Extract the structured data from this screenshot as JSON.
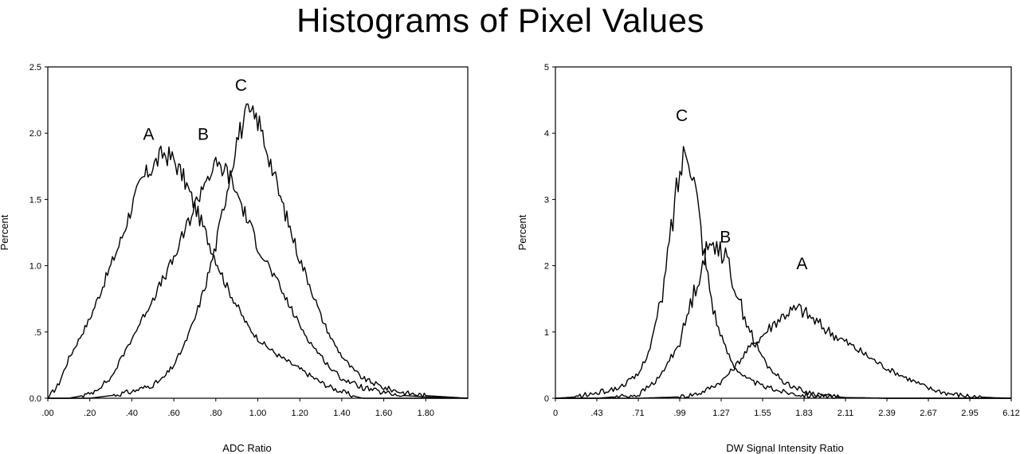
{
  "title": "Histograms of Pixel Values",
  "chart_data": [
    {
      "type": "line",
      "xlabel": "ADC Ratio",
      "ylabel": "Percent",
      "ylim": [
        0,
        2.5
      ],
      "xlim": [
        0,
        2.0
      ],
      "y_ticks": [
        {
          "value": 0,
          "label": "0.0"
        },
        {
          "value": 0.5,
          "label": ".5"
        },
        {
          "value": 1.0,
          "label": "1.0"
        },
        {
          "value": 1.5,
          "label": "1.5"
        },
        {
          "value": 2.0,
          "label": "2.0"
        },
        {
          "value": 2.5,
          "label": "2.5"
        }
      ],
      "x_ticks": [
        {
          "value": 0,
          "label": ".00"
        },
        {
          "value": 0.2,
          "label": ".20"
        },
        {
          "value": 0.4,
          "label": ".40"
        },
        {
          "value": 0.6,
          "label": ".60"
        },
        {
          "value": 0.8,
          "label": ".80"
        },
        {
          "value": 1.0,
          "label": "1.00"
        },
        {
          "value": 1.2,
          "label": "1.20"
        },
        {
          "value": 1.4,
          "label": "1.40"
        },
        {
          "value": 1.6,
          "label": "1.60"
        },
        {
          "value": 1.8,
          "label": "1.80"
        }
      ],
      "series": [
        {
          "name": "A",
          "x": [
            0.0,
            0.05,
            0.1,
            0.15,
            0.2,
            0.25,
            0.3,
            0.35,
            0.4,
            0.45,
            0.5,
            0.55,
            0.6,
            0.65,
            0.7,
            0.75,
            0.8,
            0.85,
            0.9,
            0.95,
            1.0,
            1.05,
            1.1,
            1.15,
            1.2,
            1.25,
            1.3,
            1.35,
            1.4,
            1.45,
            1.5,
            1.6,
            1.7,
            1.8,
            2.0
          ],
          "y": [
            0.0,
            0.1,
            0.3,
            0.45,
            0.6,
            0.8,
            1.0,
            1.2,
            1.45,
            1.65,
            1.75,
            1.85,
            1.8,
            1.65,
            1.45,
            1.25,
            1.05,
            0.85,
            0.7,
            0.55,
            0.45,
            0.38,
            0.32,
            0.27,
            0.22,
            0.17,
            0.12,
            0.08,
            0.05,
            0.02,
            0.0,
            0.0,
            0.0,
            0.0,
            0.0
          ]
        },
        {
          "name": "B",
          "x": [
            0.0,
            0.1,
            0.2,
            0.3,
            0.35,
            0.4,
            0.45,
            0.5,
            0.55,
            0.6,
            0.65,
            0.7,
            0.75,
            0.8,
            0.85,
            0.9,
            0.95,
            1.0,
            1.05,
            1.1,
            1.15,
            1.2,
            1.25,
            1.3,
            1.35,
            1.4,
            1.5,
            1.6,
            1.7,
            1.8,
            2.0
          ],
          "y": [
            0.0,
            0.0,
            0.03,
            0.15,
            0.3,
            0.45,
            0.6,
            0.75,
            0.9,
            1.05,
            1.25,
            1.45,
            1.65,
            1.75,
            1.72,
            1.55,
            1.35,
            1.15,
            1.0,
            0.85,
            0.7,
            0.55,
            0.42,
            0.32,
            0.22,
            0.15,
            0.08,
            0.04,
            0.02,
            0.01,
            0.0
          ]
        },
        {
          "name": "C",
          "x": [
            0.0,
            0.2,
            0.3,
            0.4,
            0.5,
            0.55,
            0.6,
            0.65,
            0.7,
            0.75,
            0.8,
            0.85,
            0.9,
            0.95,
            1.0,
            1.05,
            1.1,
            1.15,
            1.2,
            1.25,
            1.3,
            1.35,
            1.4,
            1.45,
            1.5,
            1.6,
            1.7,
            1.8,
            1.9,
            2.0
          ],
          "y": [
            0.0,
            0.0,
            0.02,
            0.05,
            0.1,
            0.15,
            0.25,
            0.4,
            0.6,
            0.85,
            1.15,
            1.55,
            1.95,
            2.15,
            2.1,
            1.85,
            1.55,
            1.3,
            1.05,
            0.85,
            0.62,
            0.45,
            0.32,
            0.22,
            0.15,
            0.08,
            0.04,
            0.02,
            0.01,
            0.0
          ]
        }
      ]
    },
    {
      "type": "line",
      "xlabel": "DW Signal Intensity Ratio",
      "ylabel": "Percent",
      "ylim": [
        0,
        5
      ],
      "xlim": [
        0,
        11
      ],
      "y_ticks": [
        {
          "value": 0,
          "label": "0"
        },
        {
          "value": 1,
          "label": "1"
        },
        {
          "value": 2,
          "label": "2"
        },
        {
          "value": 3,
          "label": "3"
        },
        {
          "value": 4,
          "label": "4"
        },
        {
          "value": 5,
          "label": "5"
        }
      ],
      "x_ticks": [
        {
          "value": 0,
          "label": "0"
        },
        {
          "value": 1,
          "label": ".43"
        },
        {
          "value": 2,
          "label": ".71"
        },
        {
          "value": 3,
          "label": ".99"
        },
        {
          "value": 4,
          "label": "1.27"
        },
        {
          "value": 5,
          "label": "1.55"
        },
        {
          "value": 6,
          "label": "1.83"
        },
        {
          "value": 7,
          "label": "2.11"
        },
        {
          "value": 8,
          "label": "2.39"
        },
        {
          "value": 9,
          "label": "2.67"
        },
        {
          "value": 10,
          "label": "2.95"
        },
        {
          "value": 11,
          "label": "6.12"
        }
      ],
      "series": [
        {
          "name": "A",
          "x": [
            0,
            1,
            2,
            3,
            3.5,
            4,
            4.3,
            4.6,
            5,
            5.3,
            5.6,
            5.9,
            6.2,
            6.5,
            7,
            7.5,
            8,
            8.5,
            9,
            9.5,
            10,
            10.5,
            11
          ],
          "y": [
            0,
            0,
            0,
            0.02,
            0.08,
            0.25,
            0.45,
            0.7,
            0.95,
            1.15,
            1.3,
            1.35,
            1.2,
            1.05,
            0.85,
            0.65,
            0.45,
            0.3,
            0.15,
            0.07,
            0.03,
            0.01,
            0
          ]
        },
        {
          "name": "B",
          "x": [
            0,
            1,
            2,
            2.5,
            3,
            3.3,
            3.6,
            3.9,
            4.2,
            4.5,
            4.8,
            5.1,
            5.5,
            6,
            6.5,
            7,
            8,
            11
          ],
          "y": [
            0,
            0,
            0.05,
            0.3,
            0.85,
            1.5,
            2.15,
            2.4,
            1.95,
            1.35,
            0.85,
            0.5,
            0.25,
            0.1,
            0.04,
            0.01,
            0,
            0
          ]
        },
        {
          "name": "C",
          "x": [
            0,
            0.5,
            1,
            1.5,
            2,
            2.3,
            2.6,
            2.8,
            3,
            3.2,
            3.4,
            3.6,
            3.8,
            4,
            4.3,
            4.6,
            5,
            5.5,
            6,
            7,
            8,
            11
          ],
          "y": [
            0,
            0.02,
            0.08,
            0.15,
            0.35,
            0.8,
            1.6,
            2.6,
            3.45,
            3.9,
            3.1,
            2.15,
            1.4,
            0.9,
            0.5,
            0.3,
            0.18,
            0.1,
            0.05,
            0.01,
            0,
            0
          ]
        }
      ]
    }
  ]
}
